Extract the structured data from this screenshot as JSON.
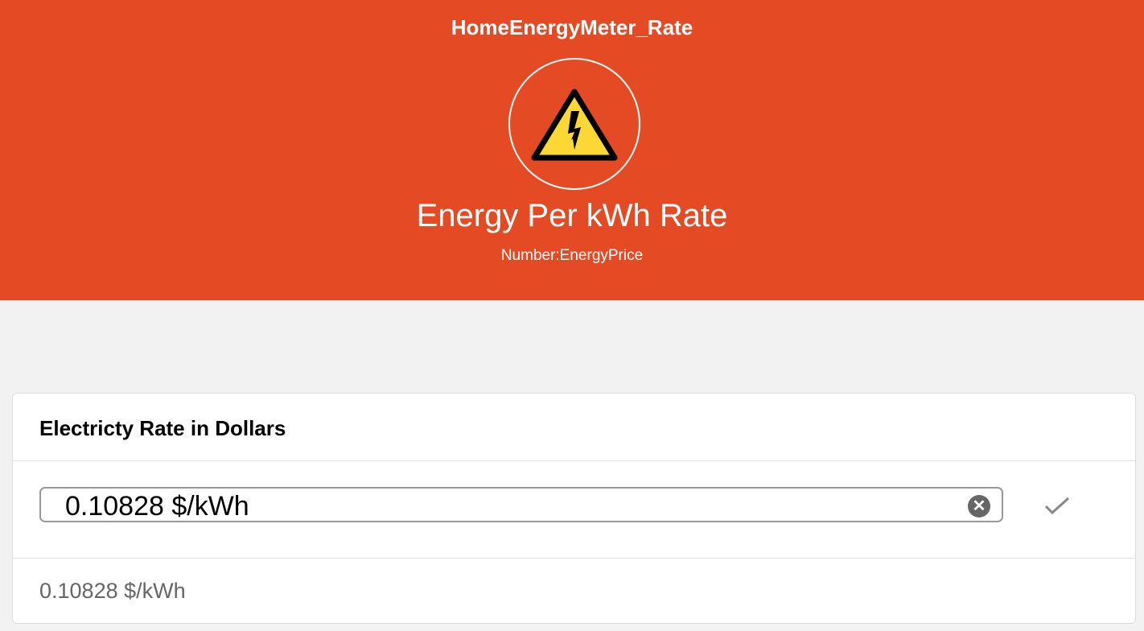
{
  "header": {
    "title": "HomeEnergyMeter_Rate",
    "item_label": "Energy Per kWh Rate",
    "item_type": "Number:EnergyPrice",
    "icon": "high-voltage-warning-icon",
    "color": "#e44a23"
  },
  "card": {
    "title": "Electricty Rate in Dollars",
    "input_value": "0.10828 $/kWh",
    "current_value": "0.10828 $/kWh"
  }
}
